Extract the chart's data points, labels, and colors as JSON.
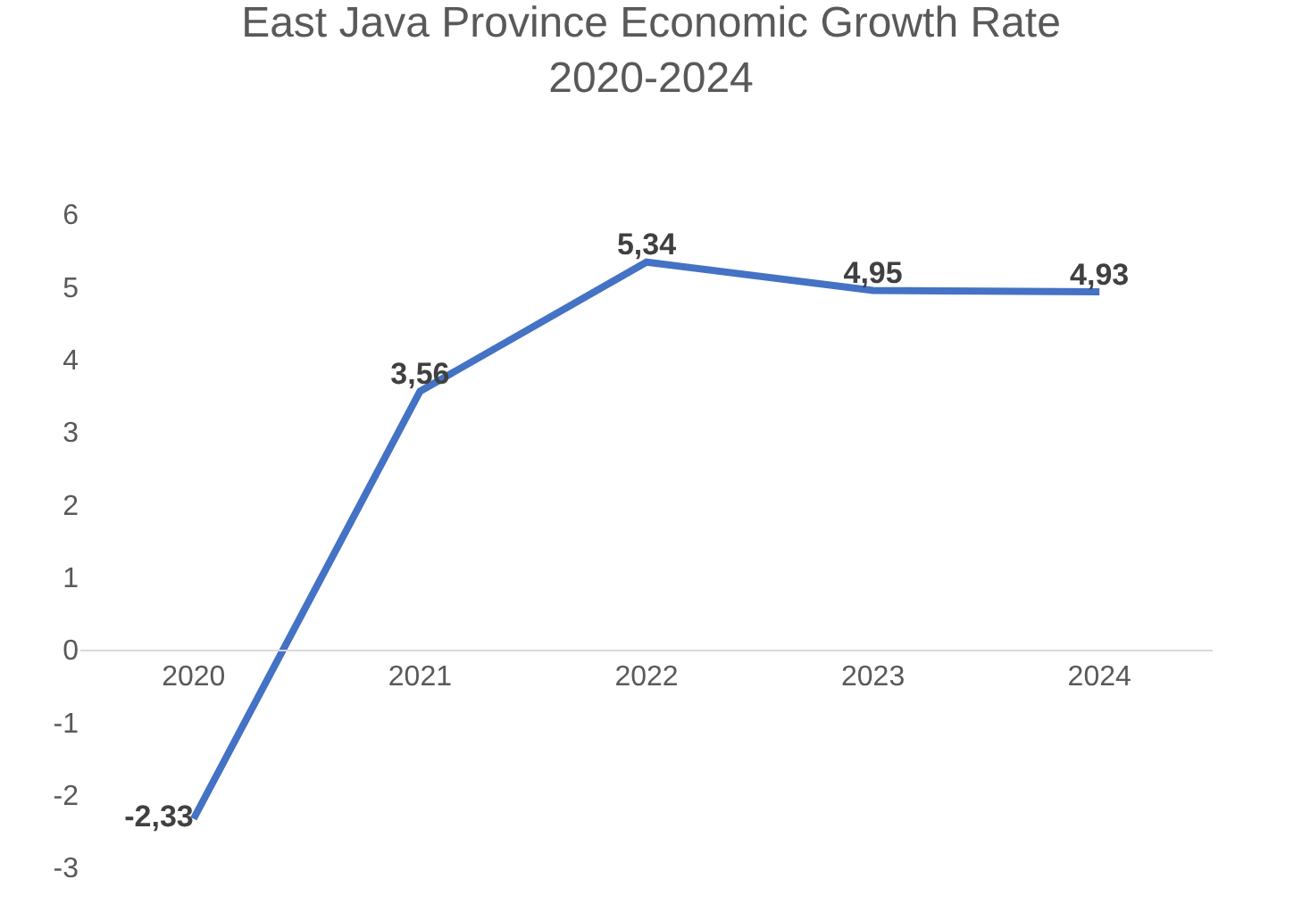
{
  "chart_data": {
    "type": "line",
    "title": "East Java Province Economic Growth Rate\n2020-2024",
    "categories": [
      "2020",
      "2021",
      "2022",
      "2023",
      "2024"
    ],
    "series": [
      {
        "color": "#4472c4",
        "values": [
          -2.33,
          3.56,
          5.34,
          4.95,
          4.93
        ],
        "value_labels": [
          "-2,33",
          "3,56",
          "5,34",
          "4,95",
          "4,93"
        ]
      }
    ],
    "ylim": [
      -3,
      6
    ],
    "yticks": [
      -3,
      -2,
      -1,
      0,
      1,
      2,
      3,
      4,
      5,
      6
    ],
    "grid": false,
    "legend": false,
    "marker": "none",
    "line_style": "solid"
  }
}
